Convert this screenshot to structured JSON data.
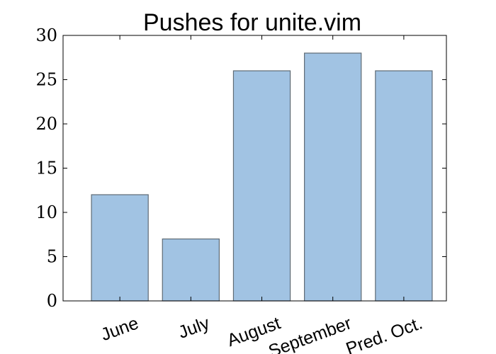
{
  "chart_data": {
    "type": "bar",
    "title": "Pushes for unite.vim",
    "categories": [
      "June",
      "July",
      "August",
      "September",
      "Pred. Oct."
    ],
    "values": [
      12,
      7,
      26,
      28,
      26
    ],
    "ylim": [
      0,
      30
    ],
    "yticks": [
      0,
      5,
      10,
      15,
      20,
      25,
      30
    ],
    "xlabel": "",
    "ylabel": "",
    "grid": false,
    "bar_color": "#a1c3e3",
    "bar_edge_color": "#5f6b75"
  }
}
